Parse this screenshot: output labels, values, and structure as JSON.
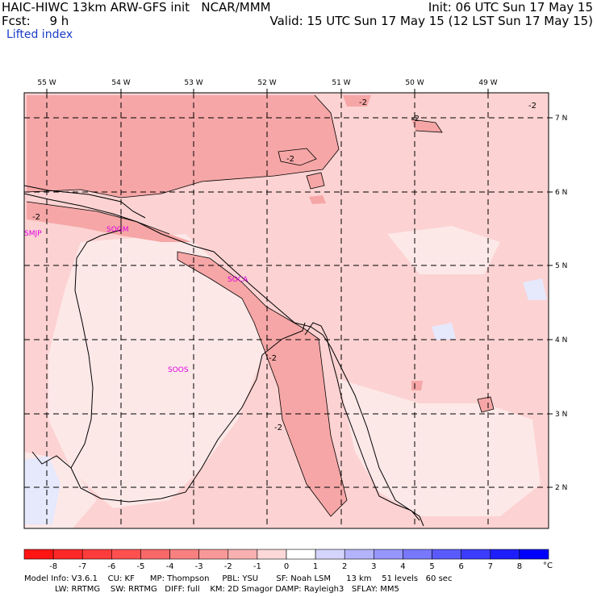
{
  "header": {
    "line1_left": "HAIC-HIWC 13km ARW-GFS init   NCAR/MMM",
    "line1_right": "Init: 06 UTC Sun 17 May 15",
    "line2_left": "Fcst:     9 h",
    "line2_right": "Valid: 15 UTC Sun 17 May 15 (12 LST Sun 17 May 15)",
    "field_name": "Lifted index"
  },
  "map": {
    "lon_labels": [
      "55 W",
      "54 W",
      "53 W",
      "52 W",
      "51 W",
      "50 W",
      "49 W"
    ],
    "lat_labels": [
      "7 N",
      "6 N",
      "5 N",
      "4 N",
      "3 N",
      "2 N"
    ],
    "stations": [
      "SMJP",
      "SOGM",
      "SOCA",
      "SOOS"
    ],
    "contour_labels": [
      "-2",
      "-2",
      "-2",
      "-2",
      "-2",
      "-2",
      "-2"
    ]
  },
  "colorbar": {
    "ticks": [
      "-8",
      "-7",
      "-6",
      "-5",
      "-4",
      "-3",
      "-2",
      "-1",
      "0",
      "1",
      "2",
      "3",
      "4",
      "5",
      "6",
      "7",
      "8"
    ],
    "unit": "°C",
    "colors": [
      "#ff1414",
      "#ff2828",
      "#ff3c3c",
      "#ff5050",
      "#f86868",
      "#f88080",
      "#f89898",
      "#f8b0b0",
      "#fcd8d8",
      "#ffffff",
      "#d4d4fc",
      "#b4b4fc",
      "#9696fc",
      "#7878fc",
      "#5a5afc",
      "#3c3cfc",
      "#1e1efc",
      "#0000ff"
    ]
  },
  "footer": {
    "line1": "Model Info: V3.6.1    CU: KF      MP: Thompson     PBL: YSU       SF: Noah LSM      13 km    51 levels   60 sec",
    "line2": "LW: RRTMG    SW: RRTMG   DIFF: full    KM: 2D Smagor DAMP: Rayleigh3   SFLAY: MM5"
  }
}
